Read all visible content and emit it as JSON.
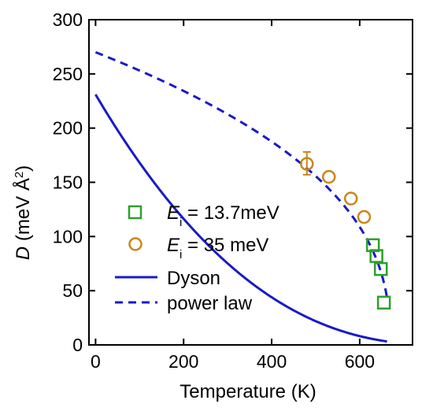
{
  "chart_data": {
    "type": "scatter",
    "xlabel": "Temperature (K)",
    "ylabel": {
      "var": "D",
      "rest": " (meV Å",
      "sup": "2",
      "close": ")"
    },
    "xlim": [
      -15,
      720
    ],
    "ylim": [
      0,
      300
    ],
    "xticks": [
      0,
      200,
      400,
      600
    ],
    "yticks": [
      0,
      50,
      100,
      150,
      200,
      250,
      300
    ],
    "grid": false,
    "legend_position": "lower-left",
    "series": [
      {
        "name": {
          "var": "E",
          "sub": "i",
          "rest": " = 13.7meV"
        },
        "kind": "marker",
        "marker": "square",
        "color": "#2ca02c",
        "points": [
          [
            630,
            92
          ],
          [
            638,
            82
          ],
          [
            648,
            70
          ],
          [
            655,
            39
          ]
        ]
      },
      {
        "name": {
          "var": "E",
          "sub": "i",
          "rest": " = 35 meV"
        },
        "kind": "marker",
        "marker": "circle",
        "color": "#c8871a",
        "points": [
          [
            480,
            167
          ],
          [
            530,
            155
          ],
          [
            580,
            135
          ],
          [
            610,
            118
          ]
        ],
        "error_bars": [
          [
            480,
            157,
            178
          ]
        ]
      },
      {
        "name": "Dyson",
        "kind": "line",
        "dash": "solid",
        "color": "#1a1ac8",
        "curve": {
          "D0": 231,
          "Tc": 790,
          "alpha": 2.35
        },
        "x_range": [
          0,
          662
        ]
      },
      {
        "name": "power law",
        "kind": "line",
        "dash": "dashed",
        "color": "#1a1ac8",
        "curve": {
          "D0": 270,
          "Tc": 669,
          "alpha": 0.4
        },
        "x_range": [
          0,
          662
        ]
      }
    ]
  }
}
